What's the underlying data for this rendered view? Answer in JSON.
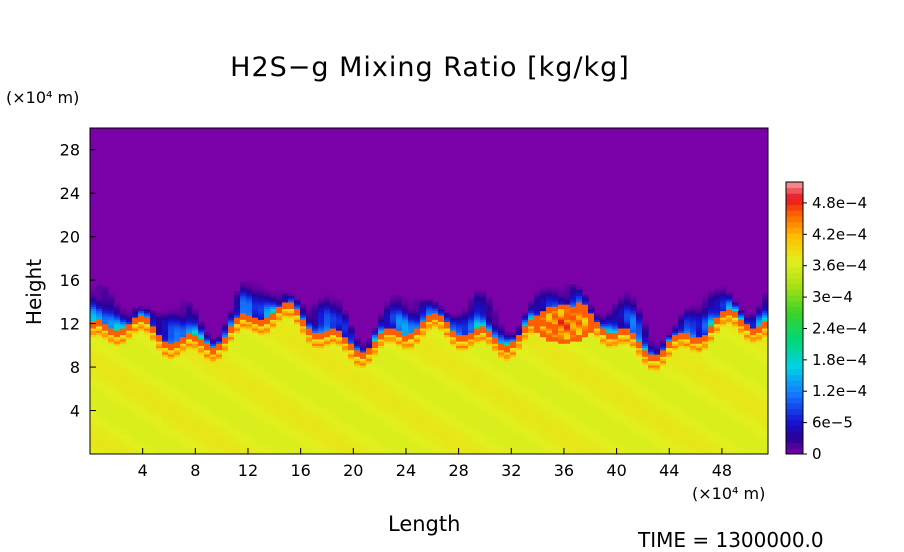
{
  "chart_data": {
    "type": "heatmap",
    "title": "H2S−g Mixing Ratio [kg/kg]",
    "xlabel": "Length",
    "ylabel": "Height",
    "x_unit": "(×10⁴ m)",
    "y_unit": "(×10⁴ m)",
    "time_label": "TIME = 1300000.0",
    "xlim": [
      0,
      51.5
    ],
    "ylim": [
      0,
      30
    ],
    "x_ticks": [
      4,
      8,
      12,
      16,
      20,
      24,
      28,
      32,
      36,
      40,
      44,
      48
    ],
    "y_ticks": [
      4,
      8,
      12,
      16,
      20,
      24,
      28
    ],
    "colorbar": {
      "range": [
        0,
        0.00052
      ],
      "tick_values": [
        0,
        6e-05,
        0.00012,
        0.00018,
        0.00024,
        0.0003,
        0.00036,
        0.00042,
        0.00048
      ],
      "tick_labels": [
        "0",
        "6e−5",
        "1.2e−4",
        "1.8e−4",
        "2.4e−4",
        "3e−4",
        "3.6e−4",
        "4.2e−4",
        "4.8e−4"
      ]
    },
    "field_summary": {
      "background_upper_value": 0,
      "lower_layer_value": 0.00037,
      "interface_height_range": [
        10.5,
        15.5
      ],
      "plume_peak_value": 0.00052,
      "plume_center": [
        36,
        12
      ]
    }
  }
}
